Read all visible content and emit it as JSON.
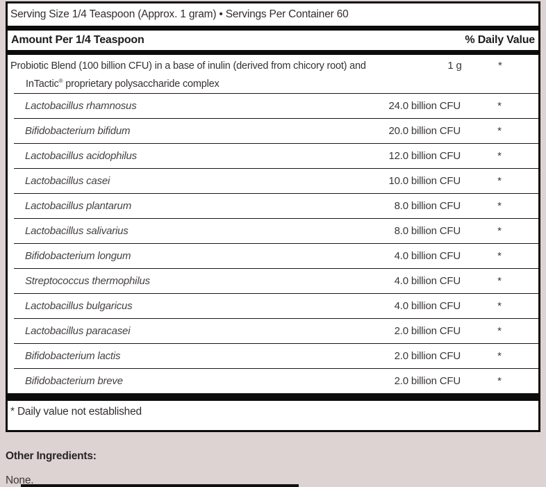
{
  "colors": {
    "page_bg": "#ddd3d3",
    "box_bg": "#ffffff",
    "bar_black": "#0c0c0c"
  },
  "label": {
    "serving_line": "Serving Size 1/4 Teaspoon (Approx. 1 gram) • Servings Per Container 60",
    "header": {
      "left": "Amount Per 1/4 Teaspoon",
      "right": "% Daily Value"
    },
    "blend": {
      "line1": "Probiotic Blend (100 billion CFU) in a base of inulin (derived from chicory root) and",
      "line2_name": "InTactic",
      "line2_mark": "®",
      "line2_rest": " proprietary polysaccharide complex",
      "amount": "1 g",
      "dv": "*"
    },
    "strains": [
      {
        "name": "Lactobacillus rhamnosus",
        "amount": "24.0 billion CFU",
        "dv": "*"
      },
      {
        "name": "Bifidobacterium bifidum",
        "amount": "20.0 billion CFU",
        "dv": "*"
      },
      {
        "name": "Lactobacillus acidophilus",
        "amount": "12.0 billion CFU",
        "dv": "*"
      },
      {
        "name": "Lactobacillus casei",
        "amount": "10.0 billion CFU",
        "dv": "*"
      },
      {
        "name": "Lactobacillus plantarum",
        "amount": "8.0 billion CFU",
        "dv": "*"
      },
      {
        "name": "Lactobacillus salivarius",
        "amount": "8.0 billion CFU",
        "dv": "*"
      },
      {
        "name": "Bifidobacterium longum",
        "amount": "4.0 billion CFU",
        "dv": "*"
      },
      {
        "name": "Streptococcus thermophilus",
        "amount": "4.0 billion CFU",
        "dv": "*"
      },
      {
        "name": "Lactobacillus bulgaricus",
        "amount": "4.0 billion CFU",
        "dv": "*"
      },
      {
        "name": "Lactobacillus paracasei",
        "amount": "2.0 billion CFU",
        "dv": "*"
      },
      {
        "name": "Bifidobacterium lactis",
        "amount": "2.0 billion CFU",
        "dv": "*"
      },
      {
        "name": "Bifidobacterium breve",
        "amount": "2.0 billion CFU",
        "dv": "*"
      }
    ],
    "footnote": "* Daily value not established"
  },
  "other_ingredients": {
    "heading": "Other Ingredients:",
    "value": "None."
  }
}
